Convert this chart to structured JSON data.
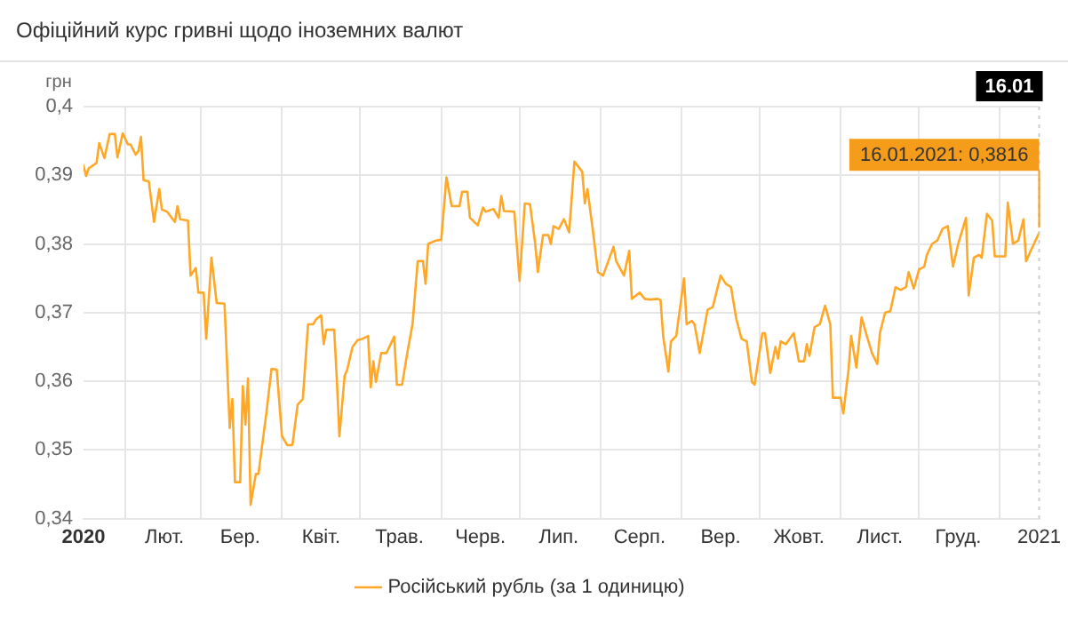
{
  "chart_data": {
    "type": "line",
    "title": "Офіційний курс гривні щодо іноземних валют",
    "ylabel": "грн",
    "xlim": [
      "2020-01-16",
      "2021-01-16"
    ],
    "xticks": [
      {
        "value": "2020-01-16",
        "label": "2020"
      },
      {
        "value": "2020-02-01",
        "label": null
      },
      {
        "value": "2020-02-16",
        "label": "Лют."
      },
      {
        "value": "2020-03-01",
        "label": null
      },
      {
        "value": "2020-03-16",
        "label": "Бер."
      },
      {
        "value": "2020-04-01",
        "label": null
      },
      {
        "value": "2020-04-16",
        "label": "Квіт."
      },
      {
        "value": "2020-05-01",
        "label": null
      },
      {
        "value": "2020-05-16",
        "label": "Трав."
      },
      {
        "value": "2020-06-01",
        "label": null
      },
      {
        "value": "2020-06-16",
        "label": "Черв."
      },
      {
        "value": "2020-07-01",
        "label": null
      },
      {
        "value": "2020-07-16",
        "label": "Лип."
      },
      {
        "value": "2020-08-01",
        "label": null
      },
      {
        "value": "2020-08-16",
        "label": "Серп."
      },
      {
        "value": "2020-09-01",
        "label": null
      },
      {
        "value": "2020-09-16",
        "label": "Вер."
      },
      {
        "value": "2020-10-01",
        "label": null
      },
      {
        "value": "2020-10-16",
        "label": "Жовт."
      },
      {
        "value": "2020-11-01",
        "label": null
      },
      {
        "value": "2020-11-16",
        "label": "Лист."
      },
      {
        "value": "2020-12-01",
        "label": null
      },
      {
        "value": "2020-12-16",
        "label": "Груд."
      },
      {
        "value": "2021-01-01",
        "label": null
      },
      {
        "value": "2021-01-16",
        "label": "2021"
      }
    ],
    "ylim": [
      0.34,
      0.4
    ],
    "yticks": [
      {
        "value": 0.34,
        "label": "0,34"
      },
      {
        "value": 0.35,
        "label": "0,35"
      },
      {
        "value": 0.36,
        "label": "0,36"
      },
      {
        "value": 0.37,
        "label": "0,37"
      },
      {
        "value": 0.38,
        "label": "0,38"
      },
      {
        "value": 0.39,
        "label": "0,39"
      },
      {
        "value": 0.4,
        "label": "0,4"
      }
    ],
    "grid": true,
    "legend": "bottom",
    "marker": "none",
    "line_style": "solid",
    "ref_lines": [
      {
        "axis": "x",
        "value": "2021-01-16",
        "label": "16.01",
        "color": "#cccccc",
        "line_style": "dotted"
      }
    ],
    "annotations": [
      {
        "text": "16.01.2021: 0,3816",
        "x": "2021-01-16",
        "y": 0.3816
      }
    ],
    "series": [
      {
        "name": "Російський рубль (за 1 одиницю)",
        "color": "#ffa726",
        "x": [
          "2020-01-16",
          "2020-01-17",
          "2020-01-18",
          "2020-01-21",
          "2020-01-22",
          "2020-01-24",
          "2020-01-26",
          "2020-01-28",
          "2020-01-29",
          "2020-01-31",
          "2020-02-02",
          "2020-02-03",
          "2020-02-05",
          "2020-02-06",
          "2020-02-07",
          "2020-02-08",
          "2020-02-10",
          "2020-02-12",
          "2020-02-14",
          "2020-02-15",
          "2020-02-17",
          "2020-02-20",
          "2020-02-21",
          "2020-02-22",
          "2020-02-25",
          "2020-02-26",
          "2020-02-28",
          "2020-02-29",
          "2020-03-02",
          "2020-03-03",
          "2020-03-05",
          "2020-03-07",
          "2020-03-10",
          "2020-03-12",
          "2020-03-13",
          "2020-03-14",
          "2020-03-16",
          "2020-03-17",
          "2020-03-18",
          "2020-03-19",
          "2020-03-20",
          "2020-03-22",
          "2020-03-23",
          "2020-03-26",
          "2020-03-28",
          "2020-03-30",
          "2020-04-01",
          "2020-04-03",
          "2020-04-05",
          "2020-04-07",
          "2020-04-09",
          "2020-04-11",
          "2020-04-13",
          "2020-04-14",
          "2020-04-16",
          "2020-04-17",
          "2020-04-18",
          "2020-04-21",
          "2020-04-22",
          "2020-04-23",
          "2020-04-25",
          "2020-04-26",
          "2020-04-28",
          "2020-04-30",
          "2020-05-02",
          "2020-05-04",
          "2020-05-05",
          "2020-05-06",
          "2020-05-07",
          "2020-05-09",
          "2020-05-11",
          "2020-05-14",
          "2020-05-15",
          "2020-05-17",
          "2020-05-19",
          "2020-05-21",
          "2020-05-23",
          "2020-05-25",
          "2020-05-26",
          "2020-05-27",
          "2020-05-30",
          "2020-06-01",
          "2020-06-03",
          "2020-06-05",
          "2020-06-08",
          "2020-06-09",
          "2020-06-11",
          "2020-06-12",
          "2020-06-15",
          "2020-06-17",
          "2020-06-18",
          "2020-06-21",
          "2020-06-23",
          "2020-06-24",
          "2020-06-25",
          "2020-06-29",
          "2020-07-01",
          "2020-07-03",
          "2020-07-05",
          "2020-07-07",
          "2020-07-08",
          "2020-07-10",
          "2020-07-12",
          "2020-07-13",
          "2020-07-14",
          "2020-07-16",
          "2020-07-18",
          "2020-07-20",
          "2020-07-22",
          "2020-07-25",
          "2020-07-26",
          "2020-07-27",
          "2020-07-29",
          "2020-07-31",
          "2020-08-02",
          "2020-08-04",
          "2020-08-06",
          "2020-08-07",
          "2020-08-10",
          "2020-08-12",
          "2020-08-13",
          "2020-08-16",
          "2020-08-18",
          "2020-08-20",
          "2020-08-23",
          "2020-08-24",
          "2020-08-25",
          "2020-08-27",
          "2020-08-28",
          "2020-08-30",
          "2020-09-02",
          "2020-09-03",
          "2020-09-05",
          "2020-09-06",
          "2020-09-08",
          "2020-09-11",
          "2020-09-13",
          "2020-09-16",
          "2020-09-18",
          "2020-09-20",
          "2020-09-22",
          "2020-09-24",
          "2020-09-26",
          "2020-09-28",
          "2020-09-29",
          "2020-10-02",
          "2020-10-03",
          "2020-10-05",
          "2020-10-07",
          "2020-10-08",
          "2020-10-09",
          "2020-10-11",
          "2020-10-14",
          "2020-10-16",
          "2020-10-18",
          "2020-10-19",
          "2020-10-20",
          "2020-10-22",
          "2020-10-24",
          "2020-10-26",
          "2020-10-28",
          "2020-10-29",
          "2020-11-01",
          "2020-11-02",
          "2020-11-04",
          "2020-11-05",
          "2020-11-07",
          "2020-11-09",
          "2020-11-11",
          "2020-11-13",
          "2020-11-15",
          "2020-11-16",
          "2020-11-18",
          "2020-11-20",
          "2020-11-22",
          "2020-11-24",
          "2020-11-26",
          "2020-11-27",
          "2020-11-29",
          "2020-12-01",
          "2020-12-03",
          "2020-12-04",
          "2020-12-06",
          "2020-12-08",
          "2020-12-10",
          "2020-12-12",
          "2020-12-14",
          "2020-12-16",
          "2020-12-17",
          "2020-12-19",
          "2020-12-20",
          "2020-12-22",
          "2020-12-24",
          "2020-12-25",
          "2020-12-27",
          "2020-12-29",
          "2020-12-30",
          "2021-01-01",
          "2021-01-03",
          "2021-01-04",
          "2021-01-06",
          "2021-01-08",
          "2021-01-10",
          "2021-01-11",
          "2021-01-13",
          "2021-01-16"
        ],
        "values": [
          0.3914,
          0.3899,
          0.391,
          0.3918,
          0.3947,
          0.3925,
          0.396,
          0.396,
          0.3926,
          0.3961,
          0.3945,
          0.3945,
          0.393,
          0.3935,
          0.3956,
          0.3893,
          0.3891,
          0.3832,
          0.388,
          0.385,
          0.3847,
          0.3832,
          0.3855,
          0.3836,
          0.3834,
          0.3754,
          0.3765,
          0.3729,
          0.3729,
          0.3662,
          0.378,
          0.3714,
          0.3713,
          0.3532,
          0.3574,
          0.3453,
          0.3453,
          0.3593,
          0.3537,
          0.3604,
          0.342,
          0.3465,
          0.3465,
          0.3553,
          0.3618,
          0.3617,
          0.352,
          0.3507,
          0.3507,
          0.3566,
          0.3574,
          0.3683,
          0.3683,
          0.369,
          0.3696,
          0.3654,
          0.3675,
          0.3675,
          0.3604,
          0.352,
          0.3608,
          0.3617,
          0.365,
          0.366,
          0.3662,
          0.3666,
          0.3591,
          0.3629,
          0.3599,
          0.3641,
          0.3641,
          0.3665,
          0.3595,
          0.3595,
          0.3641,
          0.3683,
          0.3775,
          0.3775,
          0.3742,
          0.38,
          0.3805,
          0.3806,
          0.3897,
          0.3855,
          0.3855,
          0.3876,
          0.3876,
          0.3838,
          0.3827,
          0.3853,
          0.3847,
          0.3851,
          0.3838,
          0.387,
          0.3848,
          0.3847,
          0.3746,
          0.3859,
          0.3858,
          0.38,
          0.3759,
          0.3813,
          0.3813,
          0.38,
          0.3826,
          0.3822,
          0.3836,
          0.3817,
          0.392,
          0.3905,
          0.3859,
          0.388,
          0.3822,
          0.3759,
          0.3754,
          0.3775,
          0.3796,
          0.3775,
          0.3754,
          0.379,
          0.372,
          0.3729,
          0.372,
          0.3719,
          0.372,
          0.3718,
          0.3666,
          0.3614,
          0.3658,
          0.3666,
          0.375,
          0.3683,
          0.3688,
          0.3683,
          0.3641,
          0.3704,
          0.3708,
          0.3754,
          0.3742,
          0.3737,
          0.3691,
          0.3662,
          0.3658,
          0.3599,
          0.3595,
          0.367,
          0.367,
          0.3612,
          0.365,
          0.3633,
          0.3658,
          0.3654,
          0.367,
          0.3629,
          0.3629,
          0.3654,
          0.3637,
          0.3679,
          0.3683,
          0.371,
          0.3683,
          0.3576,
          0.3576,
          0.3553,
          0.3617,
          0.3666,
          0.362,
          0.3693,
          0.3666,
          0.3641,
          0.3625,
          0.367,
          0.37,
          0.3702,
          0.3737,
          0.3733,
          0.3737,
          0.3759,
          0.3735,
          0.3763,
          0.3767,
          0.3784,
          0.38,
          0.3805,
          0.3822,
          0.3826,
          0.3767,
          0.38,
          0.3813,
          0.3838,
          0.3725,
          0.378,
          0.3784,
          0.378,
          0.3844,
          0.3834,
          0.3782,
          0.3782,
          0.3782,
          0.386,
          0.38,
          0.3805,
          0.3836,
          0.3775,
          0.3792,
          0.3816
        ]
      }
    ]
  }
}
